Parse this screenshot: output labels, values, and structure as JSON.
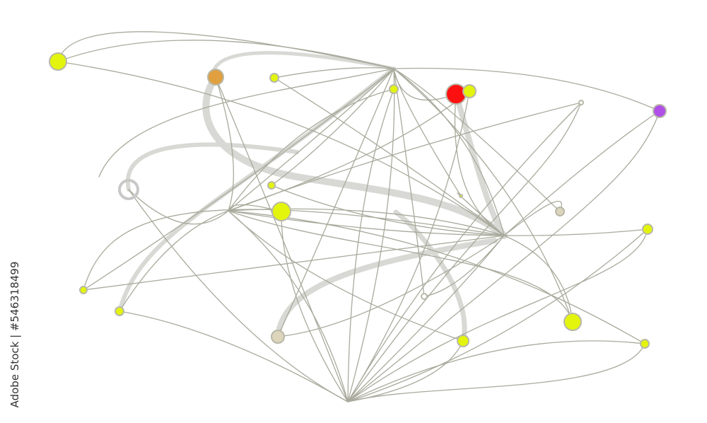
{
  "watermark": {
    "text": "Adobe Stock | #546318499"
  },
  "colors": {
    "background": "#ffffff",
    "edge": "#a9aa9c",
    "edge_light": "#d8d8d4",
    "node_yellow": "#e3f50c",
    "node_red": "#ff1010",
    "node_purple": "#b050e8",
    "node_orange": "#e0a040",
    "node_beige": "#ddd4bc"
  }
}
